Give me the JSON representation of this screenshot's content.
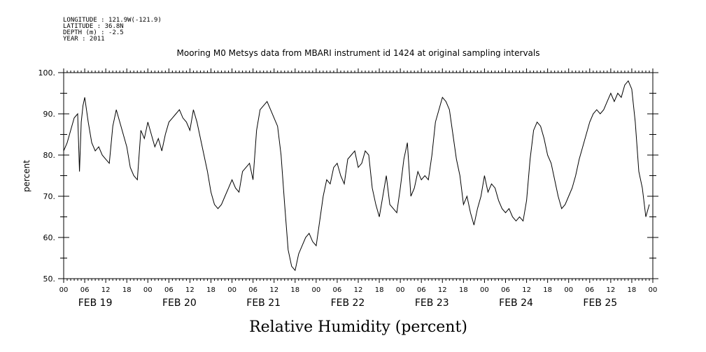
{
  "header": {
    "lines": [
      "LONGITUDE : 121.9W(-121.9)",
      "LATITUDE : 36.8N",
      "DEPTH (m) : -2.5",
      "YEAR : 2011"
    ]
  },
  "chart_data": {
    "type": "line",
    "title": "Mooring M0 Metsys data from MBARI instrument id 1424 at original sampling intervals",
    "xlabel": "Relative Humidity (percent)",
    "ylabel": "percent",
    "ylim": [
      50,
      100
    ],
    "yticks": [
      50,
      60,
      70,
      80,
      90,
      100
    ],
    "ytick_labels": [
      "50.",
      "60.",
      "70.",
      "80.",
      "90.",
      "100."
    ],
    "xlim_hours": [
      0,
      168
    ],
    "hour_labels": [
      "00",
      "06",
      "12",
      "18"
    ],
    "day_labels": [
      "FEB 19",
      "FEB 20",
      "FEB 21",
      "FEB 22",
      "FEB 23",
      "FEB 24",
      "FEB 25"
    ],
    "final_hour_label": "00",
    "color": "#000000",
    "series": [
      {
        "x": [
          0,
          1,
          2,
          3,
          4,
          4.5,
          5,
          5.5,
          6,
          7,
          8,
          9,
          10,
          11,
          12,
          13,
          14,
          15,
          16,
          17,
          18,
          19,
          20,
          21,
          22,
          23,
          24,
          25,
          26,
          27,
          28,
          29,
          30,
          31,
          32,
          33,
          34,
          35,
          36,
          37,
          38,
          39,
          40,
          41,
          42,
          43,
          44,
          45,
          46,
          47,
          48,
          49,
          50,
          51,
          52,
          53,
          54,
          55,
          56,
          57,
          58,
          59,
          60,
          61,
          62,
          63,
          64,
          65,
          66,
          67,
          68,
          69,
          70,
          71,
          72,
          73,
          74,
          75,
          76,
          77,
          78,
          79,
          80,
          81,
          82,
          83,
          84,
          85,
          86,
          87,
          88,
          89,
          90,
          91,
          92,
          93,
          94,
          95,
          96,
          97,
          98,
          99,
          100,
          101,
          102,
          103,
          104,
          105,
          106,
          107,
          108,
          109,
          110,
          111,
          112,
          113,
          114,
          115,
          116,
          117,
          118,
          119,
          120,
          121,
          122,
          123,
          124,
          125,
          126,
          127,
          128,
          129,
          130,
          131,
          132,
          133,
          134,
          135,
          136,
          137,
          138,
          139,
          140,
          141,
          142,
          143,
          144,
          145,
          146,
          147,
          148,
          149,
          150,
          151,
          152,
          153,
          154,
          155,
          156,
          157,
          158,
          159,
          160,
          161,
          162,
          163,
          164,
          165,
          166,
          167
        ],
        "values": [
          81,
          83,
          86,
          89,
          90,
          76,
          88,
          92,
          94,
          88,
          83,
          81,
          82,
          80,
          79,
          78,
          87,
          91,
          88,
          85,
          82,
          77,
          75,
          74,
          86,
          84,
          88,
          85,
          82,
          84,
          81,
          85,
          88,
          89,
          90,
          91,
          89,
          88,
          86,
          91,
          88,
          84,
          80,
          76,
          71,
          68,
          67,
          68,
          70,
          72,
          74,
          72,
          71,
          76,
          77,
          78,
          74,
          86,
          91,
          92,
          93,
          91,
          89,
          87,
          80,
          68,
          57,
          53,
          52,
          56,
          58,
          60,
          61,
          59,
          58,
          64,
          70,
          74,
          73,
          77,
          78,
          75,
          73,
          79,
          80,
          81,
          77,
          78,
          81,
          80,
          72,
          68,
          65,
          70,
          75,
          68,
          67,
          66,
          72,
          79,
          83,
          70,
          72,
          76,
          74,
          75,
          74,
          80,
          88,
          91,
          94,
          93,
          91,
          85,
          79,
          75,
          68,
          70,
          66,
          63,
          67,
          70,
          75,
          71,
          73,
          72,
          69,
          67,
          66,
          67,
          65,
          64,
          65,
          64,
          69,
          79,
          86,
          88,
          87,
          84,
          80,
          78,
          74,
          70,
          67,
          68,
          70,
          72,
          75,
          79,
          82,
          85,
          88,
          90,
          91,
          90,
          91,
          93,
          95,
          93,
          95,
          94,
          97,
          98,
          96,
          88,
          76,
          72,
          65,
          68
        ]
      }
    ]
  }
}
